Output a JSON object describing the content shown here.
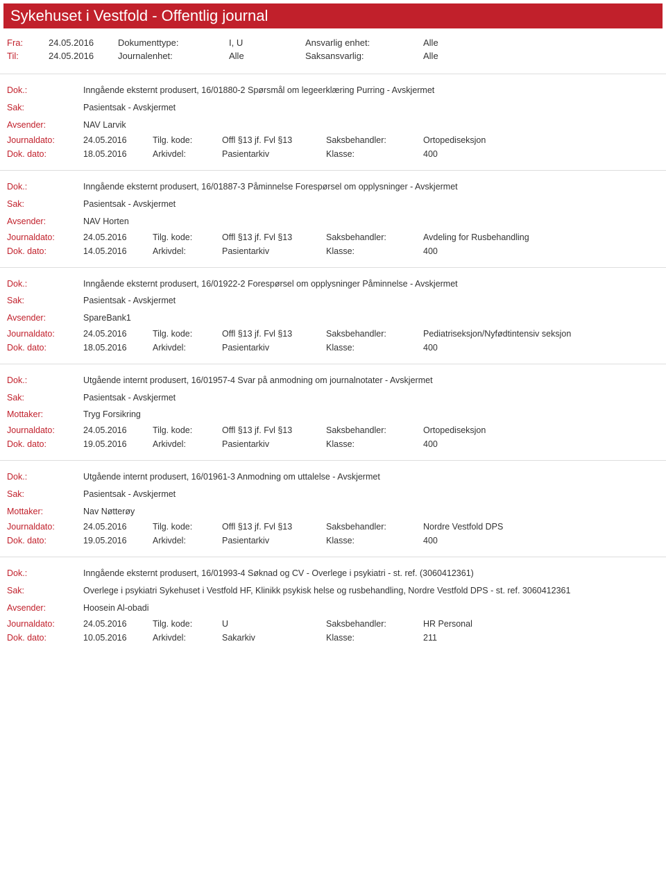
{
  "header": {
    "title": "Sykehuset i Vestfold - Offentlig journal"
  },
  "filter": {
    "fra_label": "Fra:",
    "fra": "24.05.2016",
    "til_label": "Til:",
    "til": "24.05.2016",
    "doktype_label": "Dokumenttype:",
    "doktype": "I, U",
    "journalenhet_label": "Journalenhet:",
    "journalenhet": "Alle",
    "ansvarlig_label": "Ansvarlig enhet:",
    "ansvarlig": "Alle",
    "saksansvarlig_label": "Saksansvarlig:",
    "saksansvarlig": "Alle"
  },
  "labels": {
    "dok": "Dok.:",
    "sak": "Sak:",
    "avsender": "Avsender:",
    "mottaker": "Mottaker:",
    "journaldato": "Journaldato:",
    "dokdato": "Dok. dato:",
    "tilgkode": "Tilg. kode:",
    "arkivdel": "Arkivdel:",
    "saksbehandler": "Saksbehandler:",
    "klasse": "Klasse:"
  },
  "records": [
    {
      "dok": "Inngående eksternt produsert, 16/01880-2 Spørsmål om legeerklæring Purring - Avskjermet",
      "sak": "Pasientsak - Avskjermet",
      "party_label": "Avsender:",
      "party": "NAV Larvik",
      "journaldato": "24.05.2016",
      "tilgkode": "Offl §13 jf. Fvl §13",
      "saksbehandler": "Ortopediseksjon",
      "dokdato": "18.05.2016",
      "arkivdel": "Pasientarkiv",
      "klasse": "400"
    },
    {
      "dok": "Inngående eksternt produsert, 16/01887-3 Påminnelse Forespørsel om opplysninger - Avskjermet",
      "sak": "Pasientsak - Avskjermet",
      "party_label": "Avsender:",
      "party": "NAV Horten",
      "journaldato": "24.05.2016",
      "tilgkode": "Offl §13 jf. Fvl §13",
      "saksbehandler": "Avdeling for Rusbehandling",
      "dokdato": "14.05.2016",
      "arkivdel": "Pasientarkiv",
      "klasse": "400"
    },
    {
      "dok": "Inngående eksternt produsert, 16/01922-2 Forespørsel om opplysninger Påminnelse - Avskjermet",
      "sak": "Pasientsak - Avskjermet",
      "party_label": "Avsender:",
      "party": "SpareBank1",
      "journaldato": "24.05.2016",
      "tilgkode": "Offl §13 jf. Fvl §13",
      "saksbehandler": "Pediatriseksjon/Nyfødtintensiv seksjon",
      "dokdato": "18.05.2016",
      "arkivdel": "Pasientarkiv",
      "klasse": "400"
    },
    {
      "dok": "Utgående internt produsert, 16/01957-4 Svar på anmodning om journalnotater - Avskjermet",
      "sak": "Pasientsak - Avskjermet",
      "party_label": "Mottaker:",
      "party": "Tryg Forsikring",
      "journaldato": "24.05.2016",
      "tilgkode": "Offl §13 jf. Fvl §13",
      "saksbehandler": "Ortopediseksjon",
      "dokdato": "19.05.2016",
      "arkivdel": "Pasientarkiv",
      "klasse": "400"
    },
    {
      "dok": "Utgående internt produsert, 16/01961-3 Anmodning om uttalelse - Avskjermet",
      "sak": "Pasientsak - Avskjermet",
      "party_label": "Mottaker:",
      "party": "Nav Nøtterøy",
      "journaldato": "24.05.2016",
      "tilgkode": "Offl §13 jf. Fvl §13",
      "saksbehandler": "Nordre Vestfold DPS",
      "dokdato": "19.05.2016",
      "arkivdel": "Pasientarkiv",
      "klasse": "400"
    },
    {
      "dok": "Inngående eksternt produsert, 16/01993-4 Søknad og CV - Overlege i psykiatri - st. ref. (3060412361)",
      "sak": "Overlege i psykiatri Sykehuset i Vestfold HF, Klinikk psykisk helse og rusbehandling, Nordre Vestfold DPS - st. ref. 3060412361",
      "party_label": "Avsender:",
      "party": "Hoosein Al-obadi",
      "journaldato": "24.05.2016",
      "tilgkode": "U",
      "saksbehandler": "HR Personal",
      "dokdato": "10.05.2016",
      "arkivdel": "Sakarkiv",
      "klasse": "211"
    }
  ]
}
